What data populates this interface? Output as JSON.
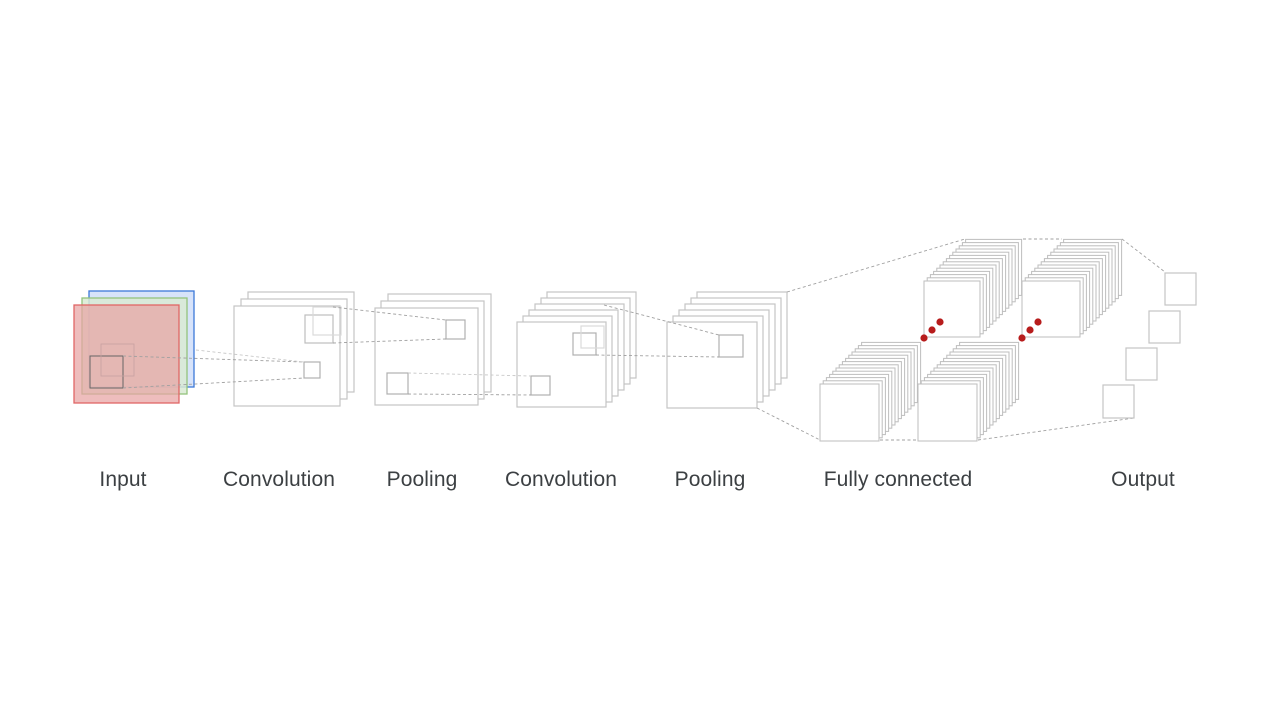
{
  "diagram": {
    "stages": [
      {
        "id": "input",
        "label": "Input"
      },
      {
        "id": "convolution-1",
        "label": "Convolution"
      },
      {
        "id": "pooling-1",
        "label": "Pooling"
      },
      {
        "id": "convolution-2",
        "label": "Convolution"
      },
      {
        "id": "pooling-2",
        "label": "Pooling"
      },
      {
        "id": "fully-connected",
        "label": "Fully connected"
      },
      {
        "id": "output",
        "label": "Output"
      }
    ],
    "colors": {
      "input_red": "#e06666",
      "input_green": "#93c47d",
      "input_blue": "#3c78d8",
      "map_stroke": "#bdbdbd",
      "connector": "#9e9e9e",
      "dots": "#b71c1c",
      "label": "#3c4043"
    }
  }
}
